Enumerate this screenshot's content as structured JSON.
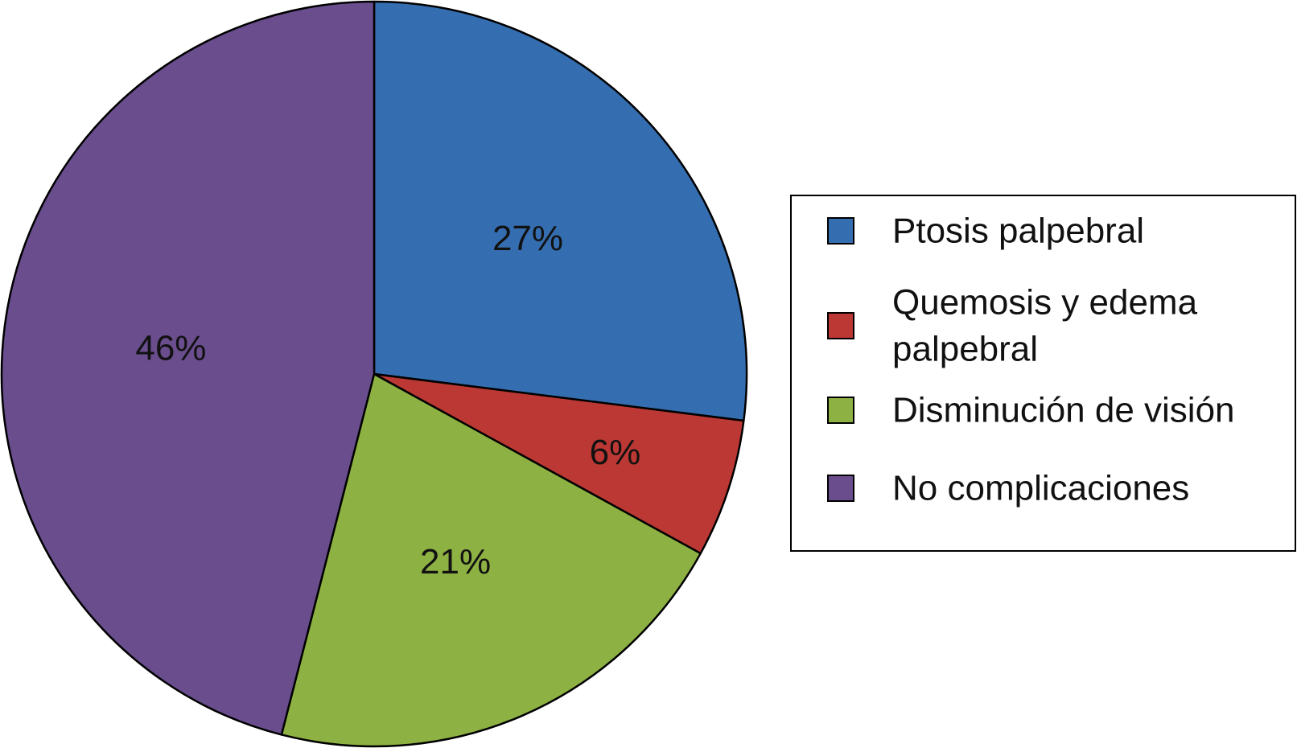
{
  "chart_data": {
    "type": "pie",
    "series": [
      {
        "name": "Ptosis palpebral",
        "value": 27,
        "label": "27%",
        "color": "#356EB0",
        "legend_lines": [
          "Ptosis palpebral"
        ]
      },
      {
        "name": "Quemosis y edema palpebral",
        "value": 6,
        "label": "6%",
        "color": "#BB3834",
        "legend_lines": [
          "Quemosis y edema",
          "palpebral"
        ]
      },
      {
        "name": "Disminución de visión",
        "value": 21,
        "label": "21%",
        "color": "#8EB143",
        "legend_lines": [
          "Disminución de visión"
        ]
      },
      {
        "name": "No complicaciones",
        "value": 46,
        "label": "46%",
        "color": "#694D8D",
        "legend_lines": [
          "No complicaciones"
        ]
      }
    ],
    "start_angle": "12 o'clock",
    "direction": "clockwise",
    "legend_position": "right"
  }
}
